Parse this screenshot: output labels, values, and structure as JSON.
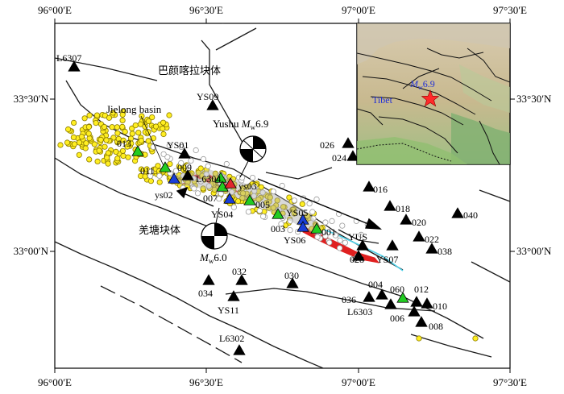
{
  "map": {
    "lon_labels": [
      "96°00′E",
      "96°30′E",
      "97°00′E",
      "97°30′E"
    ],
    "lat_labels": [
      "33°30′N",
      "33°00′N"
    ],
    "region_labels": {
      "bayan_har": "巴颜喀拉块体",
      "qiangtang": "羌塘块体"
    },
    "basin_label": "Jielong basin",
    "mainshock": {
      "prefix": "Yushu ",
      "mag_symbol": "M",
      "mag_sub": "w",
      "mag_value": "6.9"
    },
    "aftershock": {
      "mag_symbol": "M",
      "mag_sub": "w",
      "mag_value": "6.0"
    },
    "inset": {
      "region_label": "Tibet",
      "eq_label_symbol": "M",
      "eq_label_sub": "w",
      "eq_label_value": "6.9"
    },
    "colors": {
      "fault": "#1a1a1a",
      "rupture": "#e02020",
      "river": "#4fd0e8",
      "station_black": "#000000",
      "station_green": "#22cc22",
      "station_blue": "#1a3fd8",
      "station_red": "#e0262e",
      "quake_yellow": "#ffee22",
      "quake_gray": "#9a9a9a",
      "inset_star": "#ff2a2a"
    },
    "stations": {
      "L6307": "L6307",
      "YS09": "YS09",
      "YS01": "YS01",
      "s009": "009",
      "s011": "011",
      "s013": "013",
      "L6304": "L6304",
      "s007": "007",
      "ys03": "ys03",
      "s005": "005",
      "YS04": "YS04",
      "ys02": "ys02",
      "YS05": "YS05",
      "YS06": "YS06",
      "s003": "003",
      "s001": "001",
      "YUS": "YUS",
      "s028": "028",
      "YS07": "YS07",
      "s026": "026",
      "s024": "024",
      "s016": "016",
      "s018": "018",
      "s020": "020",
      "s022": "022",
      "s038": "038",
      "s040": "040",
      "s032": "032",
      "s034": "034",
      "YS11": "YS11",
      "s030": "030",
      "s036": "036",
      "s004": "004",
      "s060": "060",
      "s012": "012",
      "s010": "010",
      "L6303": "L6303",
      "s006": "006",
      "s008": "008",
      "L6302": "L6302"
    }
  }
}
